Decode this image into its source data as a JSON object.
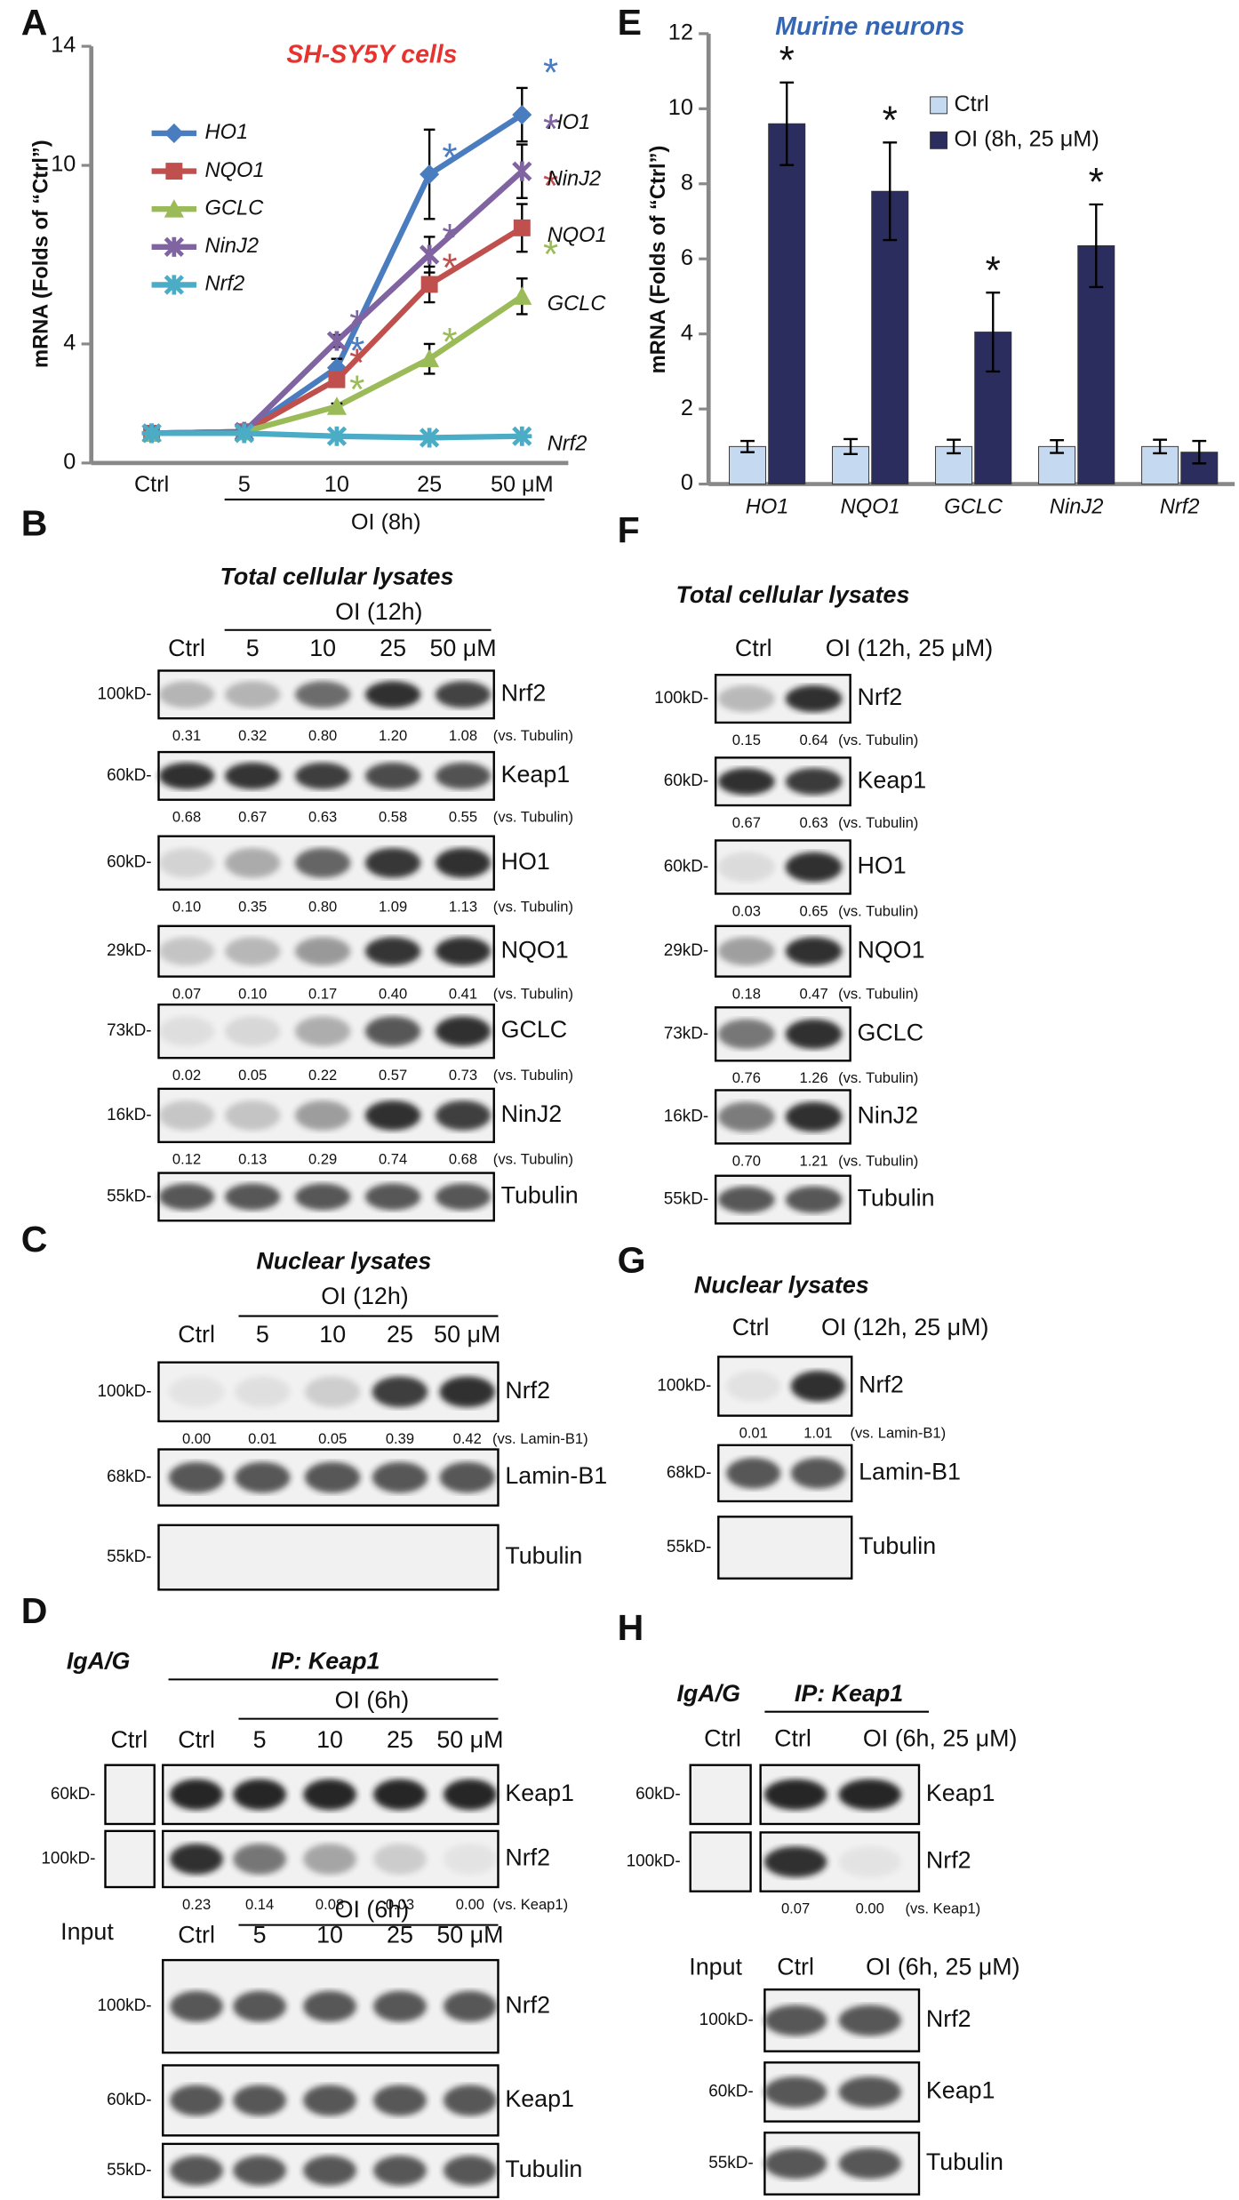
{
  "chart_data": [
    {
      "type": "line",
      "panel_label": "A",
      "title": "SH-SY5Y cells",
      "y_label": "mRNA (Folds of “Ctrl”)",
      "x_label": "OI (8h)",
      "categories": [
        "Ctrl",
        "5",
        "10",
        "25",
        "50 μM"
      ],
      "ylim": [
        0,
        14
      ],
      "yticks": [
        0,
        4,
        10,
        14
      ],
      "series": [
        {
          "name": "HO1",
          "color": "#4a7dbf",
          "marker": "diamond",
          "values": [
            1,
            1.05,
            3.2,
            9.7,
            11.7
          ],
          "errors": [
            null,
            null,
            0.3,
            1.5,
            0.9
          ],
          "star_labels": [
            null,
            null,
            "*",
            "*",
            "*"
          ]
        },
        {
          "name": "NQO1",
          "color": "#c0504d",
          "marker": "square",
          "values": [
            1,
            1.05,
            2.8,
            6,
            7.9
          ],
          "errors": [
            null,
            null,
            0.2,
            0.6,
            0.8
          ],
          "star_labels": [
            null,
            null,
            "*",
            "*",
            "*"
          ]
        },
        {
          "name": "GCLC",
          "color": "#9bbb59",
          "marker": "triangle",
          "values": [
            1,
            1.05,
            1.9,
            3.5,
            5.6
          ],
          "errors": [
            null,
            null,
            0.1,
            0.5,
            0.6
          ],
          "star_labels": [
            null,
            null,
            "*",
            "*",
            "*"
          ]
        },
        {
          "name": "NinJ2",
          "color": "#8064a2",
          "marker": "cross",
          "values": [
            1,
            1.05,
            4.1,
            7,
            9.8
          ],
          "errors": [
            null,
            null,
            0.2,
            0.6,
            0.9
          ],
          "star_labels": [
            null,
            null,
            "*",
            "*",
            "*"
          ]
        },
        {
          "name": "Nrf2",
          "color": "#4bacc6",
          "marker": "asterisk",
          "values": [
            1,
            1,
            0.9,
            0.85,
            0.9
          ]
        }
      ]
    },
    {
      "type": "bar",
      "panel_label": "E",
      "title": "Murine neurons",
      "y_label": "mRNA (Folds of “Ctrl”)",
      "categories": [
        "HO1",
        "NQO1",
        "GCLC",
        "NinJ2",
        "Nrf2"
      ],
      "ylim": [
        0,
        12
      ],
      "yticks": [
        0,
        2,
        4,
        6,
        8,
        10,
        12
      ],
      "series": [
        {
          "name": "Ctrl",
          "color": "#c5d9f1",
          "values": [
            1,
            1,
            1,
            1,
            1
          ],
          "errors": [
            0.15,
            0.2,
            0.18,
            0.17,
            0.18
          ]
        },
        {
          "name": "OI (8h, 25 μM)",
          "color": "#2b2d5e",
          "values": [
            9.6,
            7.8,
            4.05,
            6.35,
            0.85
          ],
          "errors": [
            1.1,
            1.3,
            1.05,
            1.1,
            0.3
          ],
          "star_labels": [
            "*",
            "*",
            "*",
            "*",
            null
          ]
        }
      ]
    }
  ],
  "blots": {
    "B": {
      "panel_label": "B",
      "header": "Total cellular lysates",
      "treatment": "OI (12h)",
      "lanes": [
        "Ctrl",
        "5",
        "10",
        "25",
        "50 μM"
      ],
      "rows": [
        {
          "mw": "100kD-",
          "protein": "Nrf2",
          "quant": [
            "0.31",
            "0.32",
            "0.80",
            "1.20",
            "1.08"
          ],
          "reference": "(vs. Tubulin)"
        },
        {
          "mw": "60kD-",
          "protein": "Keap1",
          "quant": [
            "0.68",
            "0.67",
            "0.63",
            "0.58",
            "0.55"
          ],
          "reference": "(vs. Tubulin)"
        },
        {
          "mw": "60kD-",
          "protein": "HO1",
          "quant": [
            "0.10",
            "0.35",
            "0.80",
            "1.09",
            "1.13"
          ],
          "reference": "(vs. Tubulin)"
        },
        {
          "mw": "29kD-",
          "protein": "NQO1",
          "quant": [
            "0.07",
            "0.10",
            "0.17",
            "0.40",
            "0.41"
          ],
          "reference": "(vs. Tubulin)"
        },
        {
          "mw": "73kD-",
          "protein": "GCLC",
          "quant": [
            "0.02",
            "0.05",
            "0.22",
            "0.57",
            "0.73"
          ],
          "reference": "(vs. Tubulin)"
        },
        {
          "mw": "16kD-",
          "protein": "NinJ2",
          "quant": [
            "0.12",
            "0.13",
            "0.29",
            "0.74",
            "0.68"
          ],
          "reference": "(vs. Tubulin)"
        },
        {
          "mw": "55kD-",
          "protein": "Tubulin"
        }
      ]
    },
    "F": {
      "panel_label": "F",
      "header": "Total cellular lysates",
      "lanes": [
        "Ctrl",
        "OI (12h, 25 μM)"
      ],
      "rows": [
        {
          "mw": "100kD-",
          "protein": "Nrf2",
          "quant": [
            "0.15",
            "0.64"
          ],
          "reference": "(vs. Tubulin)"
        },
        {
          "mw": "60kD-",
          "protein": "Keap1",
          "quant": [
            "0.67",
            "0.63"
          ],
          "reference": "(vs. Tubulin)"
        },
        {
          "mw": "60kD-",
          "protein": "HO1",
          "quant": [
            "0.03",
            "0.65"
          ],
          "reference": "(vs. Tubulin)"
        },
        {
          "mw": "29kD-",
          "protein": "NQO1",
          "quant": [
            "0.18",
            "0.47"
          ],
          "reference": "(vs. Tubulin)"
        },
        {
          "mw": "73kD-",
          "protein": "GCLC",
          "quant": [
            "0.76",
            "1.26"
          ],
          "reference": "(vs. Tubulin)"
        },
        {
          "mw": "16kD-",
          "protein": "NinJ2",
          "quant": [
            "0.70",
            "1.21"
          ],
          "reference": "(vs. Tubulin)"
        },
        {
          "mw": "55kD-",
          "protein": "Tubulin"
        }
      ]
    },
    "C": {
      "panel_label": "C",
      "header": "Nuclear lysates",
      "treatment": "OI (12h)",
      "lanes": [
        "Ctrl",
        "5",
        "10",
        "25",
        "50 μM"
      ],
      "rows": [
        {
          "mw": "100kD-",
          "protein": "Nrf2",
          "quant": [
            "0.00",
            "0.01",
            "0.05",
            "0.39",
            "0.42"
          ],
          "reference": "(vs. Lamin-B1)"
        },
        {
          "mw": "68kD-",
          "protein": "Lamin-B1"
        },
        {
          "mw": "55kD-",
          "protein": "Tubulin"
        }
      ]
    },
    "G": {
      "panel_label": "G",
      "header": "Nuclear lysates",
      "lanes": [
        "Ctrl",
        "OI (12h, 25 μM)"
      ],
      "rows": [
        {
          "mw": "100kD-",
          "protein": "Nrf2",
          "quant": [
            "0.01",
            "1.01"
          ],
          "reference": "(vs. Lamin-B1)"
        },
        {
          "mw": "68kD-",
          "protein": "Lamin-B1"
        },
        {
          "mw": "55kD-",
          "protein": "Tubulin"
        }
      ]
    },
    "D": {
      "panel_label": "D",
      "ig_label": "IgA/G",
      "ig_lanes": [
        "Ctrl"
      ],
      "ip_label": "IP: Keap1",
      "treatment": "OI (6h)",
      "lanes": [
        "Ctrl",
        "5",
        "10",
        "25",
        "50 μM"
      ],
      "rows": [
        {
          "mw": "60kD-",
          "protein": "Keap1"
        },
        {
          "mw": "100kD-",
          "protein": "Nrf2",
          "quant": [
            "0.23",
            "0.14",
            "0.08",
            "0.03",
            "0.00"
          ],
          "reference": "(vs. Keap1)"
        }
      ],
      "input_label": "Input",
      "input_treatment": "OI (6h)",
      "input_lanes": [
        "Ctrl",
        "5",
        "10",
        "25",
        "50 μM"
      ],
      "input_rows": [
        {
          "mw": "100kD-",
          "protein": "Nrf2"
        },
        {
          "mw": "60kD-",
          "protein": "Keap1"
        },
        {
          "mw": "55kD-",
          "protein": "Tubulin"
        }
      ]
    },
    "H": {
      "panel_label": "H",
      "ig_label": "IgA/G",
      "ig_lanes": [
        "Ctrl"
      ],
      "ip_label": "IP: Keap1",
      "lanes": [
        "Ctrl",
        "OI (6h, 25 μM)"
      ],
      "rows": [
        {
          "mw": "60kD-",
          "protein": "Keap1"
        },
        {
          "mw": "100kD-",
          "protein": "Nrf2",
          "quant": [
            "0.07",
            "0.00"
          ],
          "reference": "(vs. Keap1)"
        }
      ],
      "input_label": "Input",
      "input_lanes": [
        "Ctrl",
        "OI (6h, 25 μM)"
      ],
      "input_rows": [
        {
          "mw": "100kD-",
          "protein": "Nrf2"
        },
        {
          "mw": "60kD-",
          "protein": "Keap1"
        },
        {
          "mw": "55kD-",
          "protein": "Tubulin"
        }
      ]
    }
  }
}
